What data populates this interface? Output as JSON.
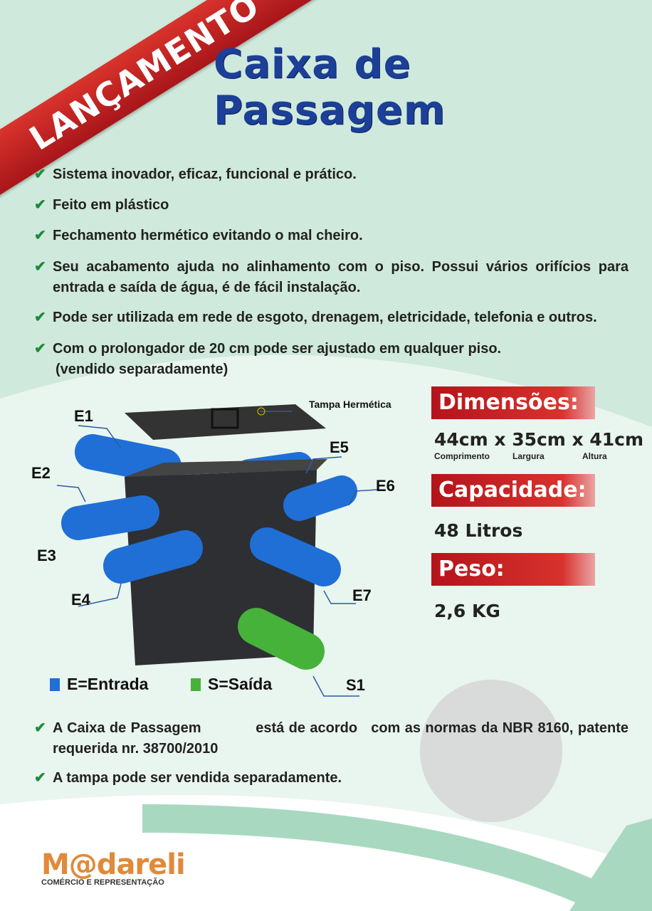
{
  "banner": "LANÇAMENTO",
  "title": "Caixa de Passagem",
  "bullets": [
    "Sistema inovador, eficaz, funcional e  prático.",
    "Feito em plástico",
    "Fechamento hermético evitando o mal cheiro.",
    "Seu acabamento ajuda no alinhamento com o piso. Possui vários orifícios para entrada e saída de água,  é de fácil instalação.",
    "Pode ser utilizada em rede de esgoto, drenagem, eletricidade, telefonia e outros.",
    "Com o prolongador de 20 cm pode ser ajustado em qualquer piso.",
    "(vendido separadamente)"
  ],
  "product": {
    "lid_label": "Tampa Hermética",
    "labels": [
      "E1",
      "E2",
      "E3",
      "E4",
      "E5",
      "E6",
      "E7",
      "S1"
    ]
  },
  "specs": {
    "dimensions_title": "Dimensões:",
    "dimensions_value": "44cm x 35cm x 41cm",
    "dim_subs": [
      "Comprimento",
      "Largura",
      "Altura"
    ],
    "capacity_title": "Capacidade:",
    "capacity_value": "48 Litros",
    "weight_title": "Peso:",
    "weight_value": "2,6 KG"
  },
  "legend": {
    "entrada": "E=Entrada",
    "saida": "S=Saída",
    "colors": {
      "entrada": "#1f6fd6",
      "saida": "#47b23a"
    }
  },
  "footer_bullets": [
    "A Caixa de Passagem            está de acordo   com as normas da NBR 8160, patente requerida nr. 38700/2010",
    "A tampa pode ser vendida separadamente."
  ],
  "logo": {
    "name": "M@dareli",
    "tagline": "COMÉRCIO E REPRESENTAÇÃO"
  },
  "colors": {
    "accent_red": "#c41f22",
    "title_blue": "#1c3f98",
    "background": "#cfe9dc"
  }
}
